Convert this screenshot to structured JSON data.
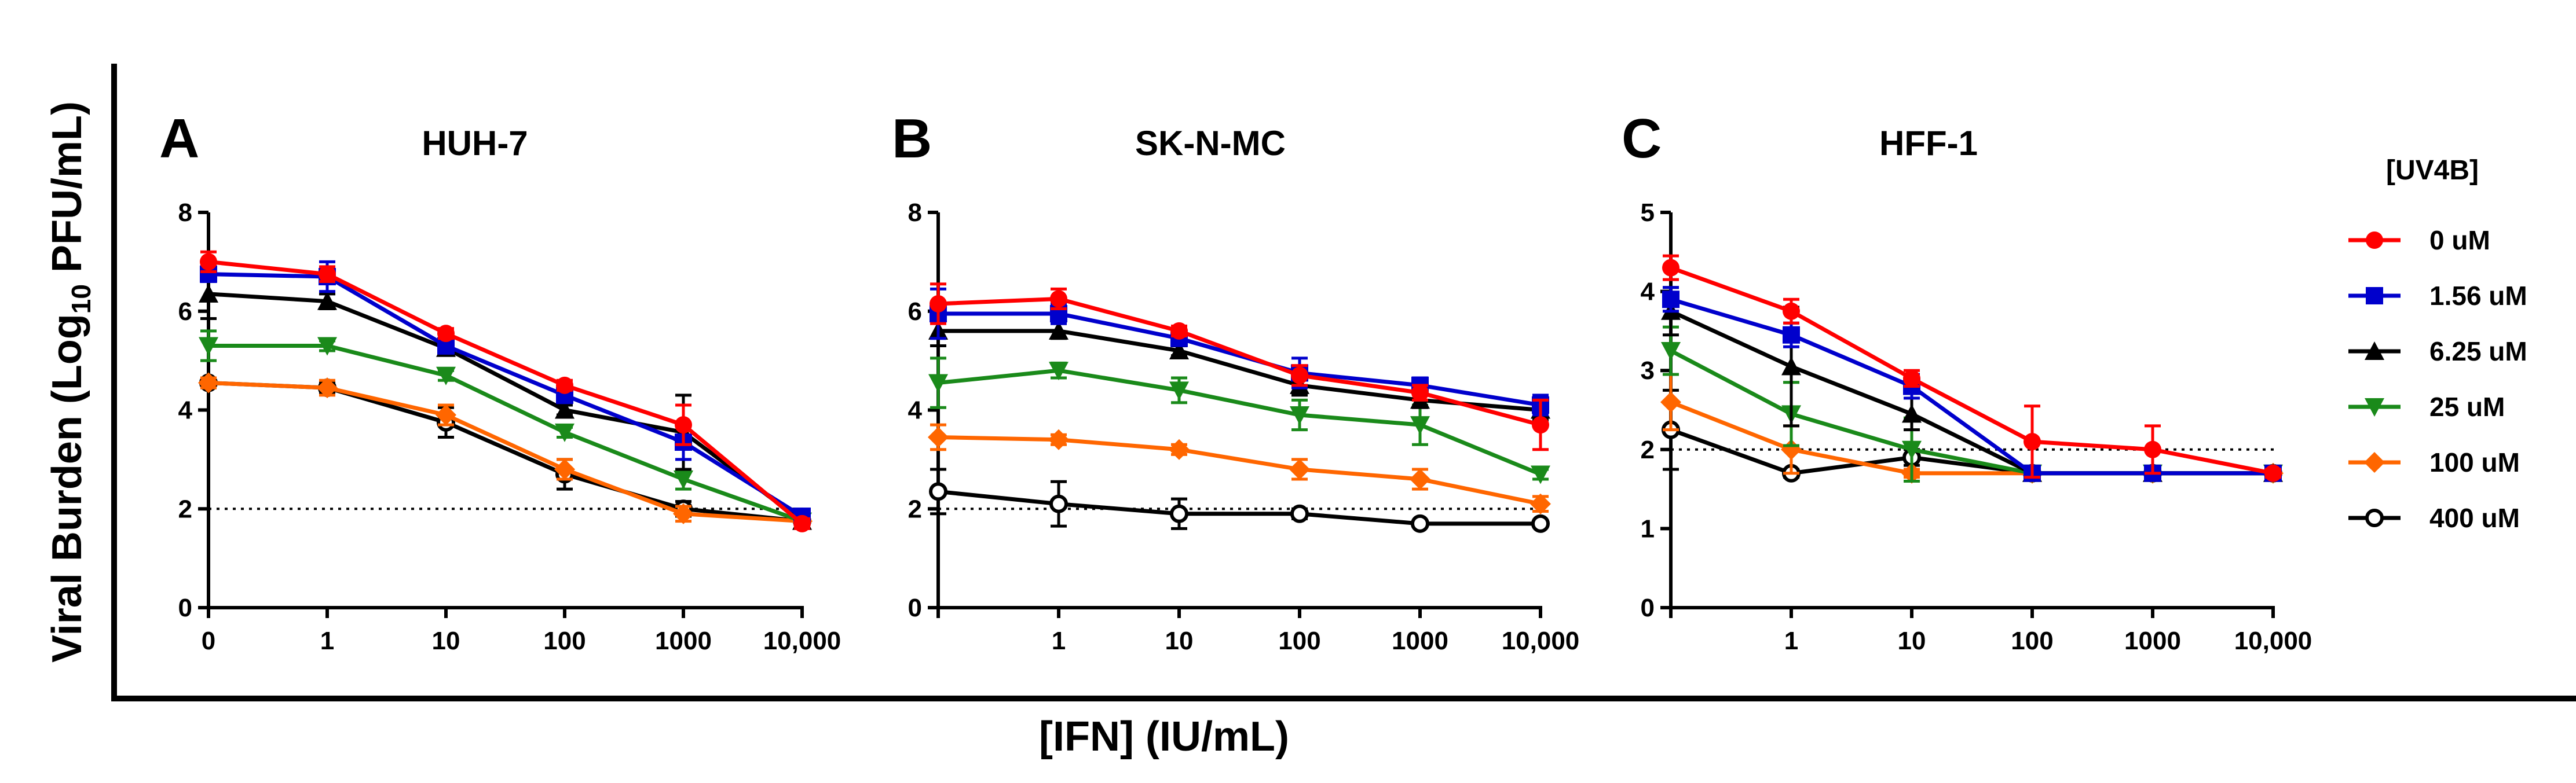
{
  "figure": {
    "ylabel_prefix": "Viral Burden (Log",
    "ylabel_sub": "10",
    "ylabel_suffix": " PFU/mL)",
    "xlabel": "[IFN] (IU/mL)",
    "legend_title": "[UV4B]"
  },
  "chart_data": [
    {
      "type": "line",
      "panel": "A",
      "title": "HUH-7",
      "categories": [
        "0",
        "1",
        "10",
        "100",
        "1000",
        "10,000"
      ],
      "yticks": [
        "0",
        "2",
        "4",
        "6",
        "8"
      ],
      "ylim": [
        0,
        8
      ],
      "threshold": 2,
      "series": [
        {
          "name": "0 uM",
          "color": "#ff0000",
          "marker": "circle",
          "values": [
            7.0,
            6.75,
            5.55,
            4.5,
            3.7,
            1.7
          ],
          "errors": [
            0.2,
            0.15,
            0.1,
            0.1,
            0.4,
            0.1
          ]
        },
        {
          "name": "1.56 uM",
          "color": "#0000cc",
          "marker": "square",
          "values": [
            6.75,
            6.7,
            5.3,
            4.3,
            3.35,
            1.85
          ],
          "errors": [
            0.15,
            0.3,
            0.15,
            0.15,
            0.35,
            0.1
          ]
        },
        {
          "name": "6.25 uM",
          "color": "#000000",
          "marker": "triangle",
          "values": [
            6.35,
            6.2,
            5.25,
            4.0,
            3.55,
            1.75
          ],
          "errors": [
            0.5,
            0.15,
            0.1,
            0.1,
            0.75,
            0.05
          ]
        },
        {
          "name": "25 uM",
          "color": "#1a8a1a",
          "marker": "triangle-down",
          "values": [
            5.3,
            5.3,
            4.7,
            3.55,
            2.6,
            1.75
          ],
          "errors": [
            0.3,
            0.1,
            0.1,
            0.1,
            0.2,
            0.05
          ]
        },
        {
          "name": "100 uM",
          "color": "#ff6600",
          "marker": "diamond",
          "values": [
            4.55,
            4.45,
            3.9,
            2.8,
            1.9,
            1.75
          ],
          "errors": [
            0.1,
            0.15,
            0.2,
            0.2,
            0.15,
            0.05
          ]
        },
        {
          "name": "400 uM",
          "color": "#000000",
          "marker": "open-circle",
          "values": [
            4.55,
            4.45,
            3.75,
            2.7,
            2.0,
            1.75
          ],
          "errors": [
            0.1,
            0.1,
            0.3,
            0.3,
            0.15,
            0.05
          ]
        }
      ]
    },
    {
      "type": "line",
      "panel": "B",
      "title": "SK-N-MC",
      "categories": [
        "",
        "1",
        "10",
        "100",
        "1000",
        "10,000"
      ],
      "yticks": [
        "0",
        "2",
        "4",
        "6",
        "8"
      ],
      "ylim": [
        0,
        8
      ],
      "threshold": 2,
      "series": [
        {
          "name": "0 uM",
          "color": "#ff0000",
          "marker": "circle",
          "values": [
            6.15,
            6.25,
            5.6,
            4.7,
            4.35,
            3.7
          ],
          "errors": [
            0.4,
            0.2,
            0.1,
            0.2,
            0.15,
            0.5
          ]
        },
        {
          "name": "1.56 uM",
          "color": "#0000cc",
          "marker": "square",
          "values": [
            5.95,
            5.95,
            5.45,
            4.75,
            4.5,
            4.1
          ],
          "errors": [
            0.5,
            0.2,
            0.1,
            0.3,
            0.15,
            0.2
          ]
        },
        {
          "name": "6.25 uM",
          "color": "#000000",
          "marker": "triangle",
          "values": [
            5.6,
            5.6,
            5.2,
            4.5,
            4.2,
            4.0
          ],
          "errors": [
            0.3,
            0.15,
            0.1,
            0.2,
            0.15,
            0.2
          ]
        },
        {
          "name": "25 uM",
          "color": "#1a8a1a",
          "marker": "triangle-down",
          "values": [
            4.55,
            4.8,
            4.4,
            3.9,
            3.7,
            2.7
          ],
          "errors": [
            0.5,
            0.15,
            0.25,
            0.3,
            0.4,
            0.1
          ]
        },
        {
          "name": "100 uM",
          "color": "#ff6600",
          "marker": "diamond",
          "values": [
            3.45,
            3.4,
            3.2,
            2.8,
            2.6,
            2.1
          ],
          "errors": [
            0.25,
            0.1,
            0.1,
            0.2,
            0.2,
            0.15
          ]
        },
        {
          "name": "400 uM",
          "color": "#000000",
          "marker": "open-circle",
          "values": [
            2.35,
            2.1,
            1.9,
            1.9,
            1.7,
            1.7
          ],
          "errors": [
            0.45,
            0.45,
            0.3,
            0.1,
            0.05,
            0.05
          ]
        }
      ]
    },
    {
      "type": "line",
      "panel": "C",
      "title": "HFF-1",
      "categories": [
        "",
        "1",
        "10",
        "100",
        "1000",
        "10,000"
      ],
      "yticks": [
        "0",
        "1",
        "2",
        "3",
        "4",
        "5"
      ],
      "ylim": [
        0,
        5
      ],
      "threshold": 2,
      "series": [
        {
          "name": "0 uM",
          "color": "#ff0000",
          "marker": "circle",
          "values": [
            4.3,
            3.75,
            2.9,
            2.1,
            2.0,
            1.7
          ],
          "errors": [
            0.15,
            0.15,
            0.1,
            0.45,
            0.3,
            0.05
          ]
        },
        {
          "name": "1.56 uM",
          "color": "#0000cc",
          "marker": "square",
          "values": [
            3.9,
            3.45,
            2.8,
            1.7,
            1.7,
            1.7
          ],
          "errors": [
            0.15,
            0.15,
            0.15,
            0.05,
            0.05,
            0.05
          ]
        },
        {
          "name": "6.25 uM",
          "color": "#000000",
          "marker": "triangle",
          "values": [
            3.75,
            3.05,
            2.45,
            1.7,
            1.7,
            1.7
          ],
          "errors": [
            0.3,
            0.75,
            0.2,
            0.05,
            0.05,
            0.05
          ]
        },
        {
          "name": "25 uM",
          "color": "#1a8a1a",
          "marker": "triangle-down",
          "values": [
            3.25,
            2.45,
            2.0,
            1.7,
            1.7,
            1.7
          ],
          "errors": [
            0.3,
            0.4,
            0.4,
            0.05,
            0.05,
            0.05
          ]
        },
        {
          "name": "100 uM",
          "color": "#ff6600",
          "marker": "diamond",
          "values": [
            2.6,
            2.0,
            1.7,
            1.7,
            1.7,
            1.7
          ],
          "errors": [
            0.35,
            0.3,
            0.05,
            0.05,
            0.05,
            0.05
          ]
        },
        {
          "name": "400 uM",
          "color": "#000000",
          "marker": "open-circle",
          "values": [
            2.25,
            1.7,
            1.9,
            1.7,
            1.7,
            1.7
          ],
          "errors": [
            0.5,
            0.05,
            0.1,
            0.05,
            0.05,
            0.05
          ]
        }
      ]
    }
  ]
}
